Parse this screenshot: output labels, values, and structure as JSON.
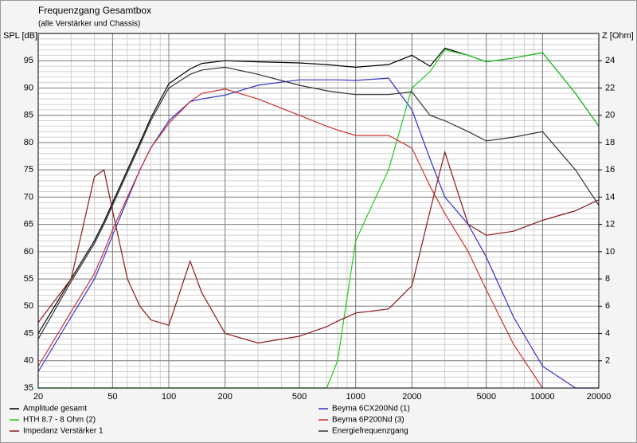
{
  "chart_data": {
    "type": "line",
    "title": "Frequenzgang Gesamtbox",
    "subtitle": "(alle Verstärker und Chassis)",
    "y_label": "SPL [dB]",
    "y2_label": "Z [Ohm]",
    "x_scale": "log",
    "grid": true,
    "legend": "bottom",
    "x": [
      20,
      30,
      40,
      45,
      50,
      60,
      70,
      80,
      100,
      130,
      150,
      200,
      300,
      500,
      700,
      800,
      1000,
      1500,
      2000,
      2500,
      3000,
      4000,
      5000,
      7000,
      10000,
      15000,
      20000
    ],
    "xlim": [
      20,
      20000
    ],
    "xticks": [
      20,
      50,
      100,
      200,
      500,
      1000,
      2000,
      5000,
      10000,
      20000
    ],
    "ylim": [
      35,
      100
    ],
    "yticks": [
      35,
      40,
      45,
      50,
      55,
      60,
      65,
      70,
      75,
      80,
      85,
      90,
      95
    ],
    "y2lim": [
      0,
      26
    ],
    "y2ticks": [
      2,
      4,
      6,
      8,
      10,
      12,
      14,
      16,
      18,
      20,
      22,
      24
    ],
    "series": [
      {
        "name": "Amplitude gesamt",
        "color": "#000000",
        "values": [
          45,
          55,
          62,
          65.5,
          69,
          75,
          80,
          84.5,
          90.8,
          93.5,
          94.5,
          95,
          94.8,
          94.6,
          94.3,
          94.1,
          93.8,
          94.3,
          96,
          94,
          97.3,
          96,
          94.8,
          95.5,
          96.5,
          89,
          83
        ]
      },
      {
        "name": "Beyma 6CX200Nd (1)",
        "color": "#3333cc",
        "values": [
          38,
          48,
          55,
          59,
          63,
          69.5,
          75,
          79,
          84,
          87.5,
          88,
          88.7,
          90.5,
          91.5,
          91.5,
          91.5,
          91.4,
          91.8,
          86,
          77,
          70,
          65,
          59,
          48,
          39,
          35,
          35
        ]
      },
      {
        "name": "HTH 8.7 - 8 Ohm (2)",
        "color": "#22cc22",
        "values": [
          35,
          35,
          35,
          35,
          35,
          35,
          35,
          35,
          35,
          35,
          35,
          35,
          35,
          35,
          35,
          40,
          62,
          75,
          90,
          93,
          97,
          96,
          94.8,
          95.5,
          96.5,
          89,
          83
        ]
      },
      {
        "name": "Beyma 6P200Nd (3)",
        "color": "#cc3333",
        "values": [
          39,
          49,
          56,
          60,
          64,
          70,
          75,
          79,
          83.5,
          87.5,
          89,
          89.8,
          88,
          85,
          83,
          82.3,
          81.3,
          81.3,
          79,
          72,
          67,
          60,
          53,
          43,
          35,
          null,
          null
        ]
      },
      {
        "name": "Impedanz Verstärker 1",
        "color": "#8b1a1a",
        "axis": "y2",
        "values": [
          4.8,
          8,
          15.5,
          16,
          13,
          8,
          6,
          5,
          4.6,
          9.3,
          7,
          4,
          3.3,
          3.8,
          4.5,
          4.9,
          5.5,
          5.8,
          7.5,
          13,
          17.3,
          12,
          11.2,
          11.5,
          12.3,
          13,
          13.8
        ]
      },
      {
        "name": "Energiefrequenzgang",
        "color": "#333333",
        "values": [
          44,
          54.5,
          61.5,
          65,
          68.5,
          74.5,
          79.5,
          84,
          90,
          92.5,
          93.3,
          93.8,
          92.5,
          90.5,
          89.5,
          89.2,
          88.8,
          88.8,
          89.3,
          85,
          84,
          82,
          80.3,
          81,
          82,
          75,
          68.5
        ]
      }
    ]
  }
}
